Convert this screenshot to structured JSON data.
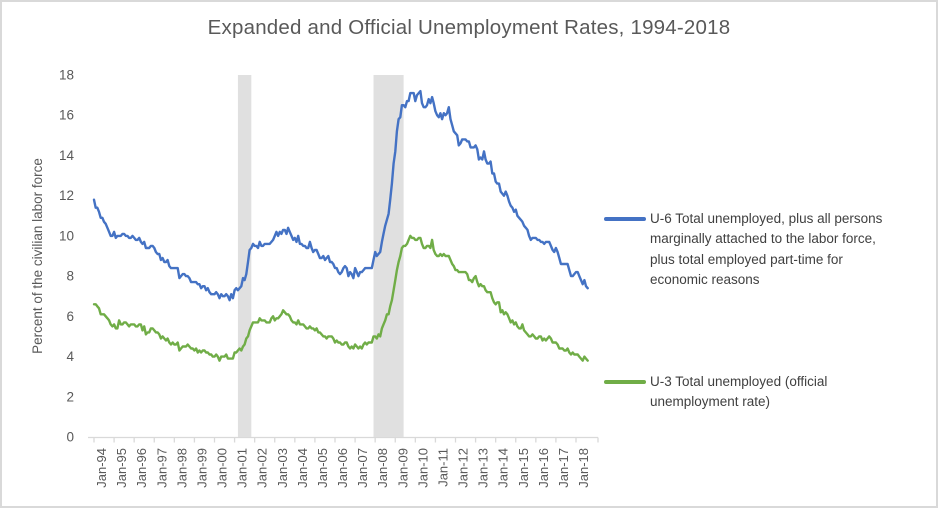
{
  "window": {
    "background": "#FFFFFF",
    "border_color": "#D9D9D9"
  },
  "chart_data": {
    "type": "line",
    "title": "Expanded and Official Unemployment Rates, 1994-2018",
    "ylabel": "Percent of the civilian labor force",
    "xlabel": "",
    "ylim": [
      0,
      18
    ],
    "y_ticks": [
      0,
      2,
      4,
      6,
      8,
      10,
      12,
      14,
      16,
      18
    ],
    "grid": false,
    "legend_position": "right",
    "x_unit": "month",
    "x_start": "Jan-1994",
    "x_end": "Aug-2018",
    "x_tick_labels": [
      "Jan-94",
      "Jan-95",
      "Jan-96",
      "Jan-97",
      "Jan-98",
      "Jan-99",
      "Jan-00",
      "Jan-01",
      "Jan-02",
      "Jan-03",
      "Jan-04",
      "Jan-05",
      "Jan-06",
      "Jan-07",
      "Jan-08",
      "Jan-09",
      "Jan-10",
      "Jan-11",
      "Jan-12",
      "Jan-13",
      "Jan-14",
      "Jan-15",
      "Jan-16",
      "Jan-17",
      "Jan-18"
    ],
    "band_color": "#E0E0E0",
    "axis_color": "#D9D9D9",
    "text_color": "#595959",
    "recession_bands": [
      {
        "label": "2001 recession",
        "start": "Mar-2001",
        "end": "Nov-2001",
        "start_month_index": 86,
        "end_month_index": 94
      },
      {
        "label": "2008-09 recession",
        "start": "Dec-2007",
        "end": "Jun-2009",
        "start_month_index": 167,
        "end_month_index": 185
      }
    ],
    "series": [
      {
        "id": "u6",
        "name": "U-6 Total unemployed, plus all persons marginally attached to the labor force, plus total employed part-time for economic reasons",
        "color": "#4472C4",
        "values": [
          11.8,
          11.4,
          11.4,
          11.2,
          10.9,
          10.9,
          10.7,
          10.6,
          10.4,
          10.2,
          10.0,
          10.0,
          10.2,
          9.9,
          10.0,
          10.0,
          10.0,
          10.1,
          10.1,
          10.0,
          10.0,
          9.9,
          9.9,
          10.0,
          9.9,
          9.8,
          9.8,
          9.9,
          9.7,
          9.6,
          9.7,
          9.4,
          9.4,
          9.4,
          9.5,
          9.5,
          9.4,
          9.2,
          9.1,
          9.1,
          8.8,
          8.9,
          8.7,
          8.7,
          8.8,
          8.5,
          8.4,
          8.4,
          8.4,
          8.4,
          8.4,
          7.9,
          8.0,
          8.1,
          8.1,
          8.0,
          8.0,
          7.9,
          7.7,
          7.7,
          7.7,
          7.7,
          7.6,
          7.6,
          7.4,
          7.5,
          7.5,
          7.3,
          7.4,
          7.2,
          7.1,
          7.1,
          7.1,
          7.2,
          7.1,
          6.9,
          7.1,
          7.0,
          7.0,
          7.1,
          7.0,
          6.8,
          7.1,
          6.9,
          7.3,
          7.4,
          7.3,
          7.4,
          7.5,
          7.9,
          7.8,
          8.1,
          8.7,
          9.3,
          9.4,
          9.6,
          9.5,
          9.5,
          9.4,
          9.7,
          9.5,
          9.5,
          9.6,
          9.6,
          9.6,
          9.6,
          9.7,
          9.8,
          10.0,
          10.2,
          10.0,
          10.2,
          10.1,
          10.3,
          10.3,
          10.1,
          10.4,
          10.2,
          10.0,
          9.8,
          9.9,
          9.7,
          10.0,
          9.6,
          9.6,
          9.5,
          9.5,
          9.4,
          9.4,
          9.7,
          9.4,
          9.2,
          9.3,
          9.3,
          9.1,
          8.9,
          8.9,
          9.0,
          8.8,
          8.9,
          9.0,
          8.7,
          8.7,
          8.6,
          8.4,
          8.4,
          8.2,
          8.1,
          8.2,
          8.4,
          8.5,
          8.4,
          8.0,
          8.2,
          8.1,
          7.9,
          8.4,
          8.2,
          8.0,
          8.2,
          8.2,
          8.3,
          8.4,
          8.4,
          8.4,
          8.4,
          8.4,
          8.8,
          9.2,
          9.0,
          9.1,
          9.2,
          9.7,
          10.1,
          10.5,
          10.8,
          11.1,
          11.8,
          12.6,
          13.6,
          14.2,
          15.2,
          15.8,
          15.9,
          16.5,
          16.5,
          16.4,
          16.7,
          16.7,
          17.1,
          17.1,
          17.1,
          16.7,
          17.0,
          17.1,
          17.2,
          16.6,
          16.4,
          16.4,
          16.5,
          16.8,
          16.6,
          16.9,
          16.6,
          16.2,
          16.0,
          15.9,
          16.1,
          15.8,
          16.1,
          16.0,
          16.1,
          16.4,
          15.8,
          15.5,
          15.2,
          15.1,
          15.0,
          14.5,
          14.6,
          14.8,
          14.8,
          14.8,
          14.7,
          14.7,
          14.4,
          14.4,
          14.4,
          14.5,
          14.3,
          13.8,
          13.9,
          13.8,
          14.2,
          13.8,
          13.6,
          13.6,
          13.7,
          13.1,
          13.1,
          12.7,
          12.6,
          12.6,
          12.2,
          12.1,
          12.0,
          12.2,
          12.0,
          11.7,
          11.5,
          11.4,
          11.2,
          11.3,
          11.0,
          10.9,
          10.8,
          10.7,
          10.5,
          10.4,
          10.3,
          10.0,
          9.8,
          9.9,
          9.9,
          9.9,
          9.8,
          9.8,
          9.7,
          9.7,
          9.6,
          9.7,
          9.7,
          9.7,
          9.5,
          9.3,
          9.2,
          9.4,
          9.2,
          8.9,
          8.6,
          8.6,
          8.6,
          8.6,
          8.6,
          8.3,
          8.0,
          8.0,
          8.1,
          8.2,
          8.2,
          8.0,
          7.8,
          7.6,
          7.8,
          7.5,
          7.4
        ]
      },
      {
        "id": "u3",
        "name": "U-3 Total unemployed (official unemployment rate)",
        "color": "#70AD47",
        "values": [
          6.6,
          6.6,
          6.5,
          6.4,
          6.1,
          6.1,
          6.1,
          6.0,
          5.9,
          5.8,
          5.6,
          5.5,
          5.6,
          5.4,
          5.4,
          5.8,
          5.6,
          5.6,
          5.7,
          5.7,
          5.6,
          5.5,
          5.6,
          5.6,
          5.6,
          5.5,
          5.5,
          5.6,
          5.6,
          5.3,
          5.5,
          5.1,
          5.2,
          5.2,
          5.4,
          5.4,
          5.3,
          5.2,
          5.2,
          5.1,
          4.9,
          5.0,
          4.9,
          4.8,
          4.9,
          4.7,
          4.6,
          4.7,
          4.6,
          4.6,
          4.7,
          4.3,
          4.4,
          4.5,
          4.5,
          4.5,
          4.6,
          4.5,
          4.4,
          4.4,
          4.3,
          4.4,
          4.2,
          4.3,
          4.2,
          4.3,
          4.3,
          4.2,
          4.2,
          4.1,
          4.1,
          4.0,
          4.0,
          4.1,
          4.0,
          3.8,
          4.0,
          4.0,
          4.0,
          4.1,
          3.9,
          3.9,
          3.9,
          3.9,
          4.2,
          4.2,
          4.3,
          4.4,
          4.3,
          4.5,
          4.6,
          4.9,
          5.0,
          5.3,
          5.5,
          5.7,
          5.7,
          5.7,
          5.7,
          5.9,
          5.8,
          5.8,
          5.8,
          5.7,
          5.7,
          5.7,
          5.9,
          6.0,
          5.8,
          5.9,
          5.9,
          6.0,
          6.1,
          6.3,
          6.2,
          6.1,
          6.1,
          6.0,
          5.8,
          5.7,
          5.7,
          5.6,
          5.8,
          5.6,
          5.6,
          5.6,
          5.5,
          5.4,
          5.4,
          5.5,
          5.4,
          5.4,
          5.3,
          5.4,
          5.2,
          5.2,
          5.1,
          5.0,
          5.0,
          4.9,
          5.0,
          5.0,
          5.0,
          4.9,
          4.7,
          4.8,
          4.7,
          4.7,
          4.6,
          4.6,
          4.7,
          4.7,
          4.5,
          4.4,
          4.5,
          4.4,
          4.6,
          4.5,
          4.4,
          4.5,
          4.4,
          4.6,
          4.7,
          4.6,
          4.7,
          4.7,
          4.7,
          5.0,
          5.0,
          4.9,
          5.1,
          5.0,
          5.4,
          5.6,
          5.8,
          6.1,
          6.1,
          6.5,
          6.8,
          7.3,
          7.8,
          8.3,
          8.7,
          9.0,
          9.4,
          9.5,
          9.5,
          9.6,
          9.8,
          10.0,
          9.9,
          9.9,
          9.8,
          9.8,
          9.9,
          9.9,
          9.6,
          9.4,
          9.4,
          9.5,
          9.5,
          9.4,
          9.8,
          9.3,
          9.1,
          9.0,
          9.0,
          9.1,
          9.0,
          9.1,
          9.0,
          9.0,
          9.0,
          8.8,
          8.6,
          8.5,
          8.3,
          8.3,
          8.2,
          8.2,
          8.2,
          8.2,
          8.2,
          8.1,
          7.8,
          7.8,
          7.7,
          7.9,
          8.0,
          7.7,
          7.5,
          7.6,
          7.5,
          7.5,
          7.3,
          7.2,
          7.2,
          7.2,
          6.9,
          6.7,
          6.6,
          6.7,
          6.7,
          6.2,
          6.3,
          6.1,
          6.2,
          6.1,
          5.9,
          5.7,
          5.8,
          5.6,
          5.7,
          5.5,
          5.4,
          5.4,
          5.6,
          5.3,
          5.2,
          5.1,
          5.0,
          5.0,
          5.1,
          5.0,
          4.9,
          4.9,
          5.0,
          5.0,
          4.8,
          4.9,
          4.8,
          4.9,
          5.0,
          4.9,
          4.7,
          4.7,
          4.7,
          4.6,
          4.4,
          4.4,
          4.4,
          4.3,
          4.3,
          4.4,
          4.2,
          4.1,
          4.2,
          4.1,
          4.1,
          4.1,
          4.0,
          3.9,
          3.8,
          4.0,
          3.9,
          3.8
        ]
      }
    ]
  }
}
